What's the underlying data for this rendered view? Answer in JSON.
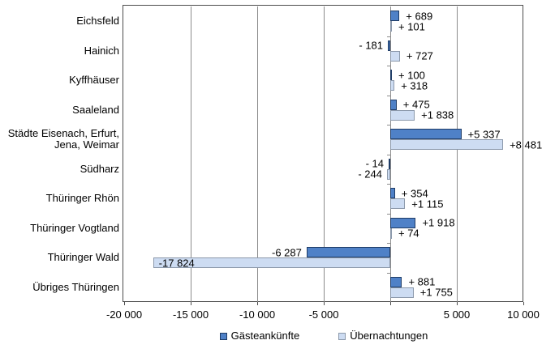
{
  "chart_data": {
    "type": "bar",
    "orientation": "horizontal",
    "title": "",
    "x_axis": {
      "min": -20000,
      "max": 10000,
      "ticks": [
        {
          "v": -20000,
          "label": "-20 000"
        },
        {
          "v": -15000,
          "label": "-15 000"
        },
        {
          "v": -10000,
          "label": "-10 000"
        },
        {
          "v": -5000,
          "label": "-5 000"
        },
        {
          "v": 0,
          "label": ""
        },
        {
          "v": 5000,
          "label": "5 000"
        },
        {
          "v": 10000,
          "label": "10 000"
        }
      ]
    },
    "categories": [
      {
        "lines": [
          "Eichsfeld"
        ]
      },
      {
        "lines": [
          "Hainich"
        ]
      },
      {
        "lines": [
          "Kyffhäuser"
        ]
      },
      {
        "lines": [
          "Saaleland"
        ]
      },
      {
        "lines": [
          "Städte Eisenach, Erfurt,",
          "Jena, Weimar"
        ]
      },
      {
        "lines": [
          "Südharz"
        ]
      },
      {
        "lines": [
          "Thüringer Rhön"
        ]
      },
      {
        "lines": [
          "Thüringer Vogtland"
        ]
      },
      {
        "lines": [
          "Thüringer Wald"
        ]
      },
      {
        "lines": [
          "Übriges Thüringen"
        ]
      }
    ],
    "series": [
      {
        "name": "Gästeankünfte",
        "fill": "#4f81c7",
        "border": "#1f3c66",
        "points": [
          {
            "v": 689,
            "label": "+ 689"
          },
          {
            "v": -181,
            "label": "- 181"
          },
          {
            "v": 100,
            "label": "+ 100"
          },
          {
            "v": 475,
            "label": "+ 475"
          },
          {
            "v": 5337,
            "label": "+5 337"
          },
          {
            "v": -14,
            "label": "- 14"
          },
          {
            "v": 354,
            "label": "+ 354"
          },
          {
            "v": 1918,
            "label": "+1 918"
          },
          {
            "v": -6287,
            "label": "-6 287"
          },
          {
            "v": 881,
            "label": "+ 881"
          }
        ]
      },
      {
        "name": "Übernachtungen",
        "fill": "#cddcf2",
        "border": "#8c99ab",
        "points": [
          {
            "v": 101,
            "label": "+ 101"
          },
          {
            "v": 727,
            "label": "+ 727"
          },
          {
            "v": 318,
            "label": "+ 318"
          },
          {
            "v": 1838,
            "label": "+1 838"
          },
          {
            "v": 8481,
            "label": "+8 481"
          },
          {
            "v": -244,
            "label": "- 244"
          },
          {
            "v": 1115,
            "label": "+1 115"
          },
          {
            "v": 74,
            "label": "+ 74"
          },
          {
            "v": -17824,
            "label": "-17 824",
            "inside": true
          },
          {
            "v": 1755,
            "label": "+1 755"
          }
        ]
      }
    ],
    "legend_position": "bottom",
    "colors": {
      "grid": "#8c8c8c",
      "frame": "#4d4d4d",
      "text": "#000000",
      "background": "#ffffff"
    }
  }
}
